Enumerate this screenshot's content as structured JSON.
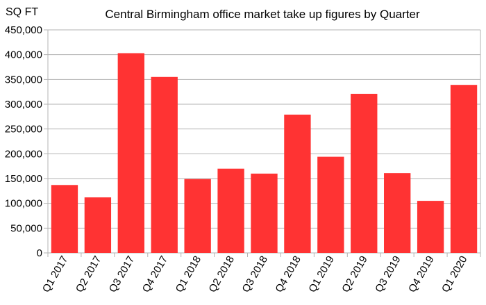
{
  "chart_data": {
    "type": "bar",
    "title": "Central Birmingham office market take up figures by Quarter",
    "ylabel": "SQ FT",
    "xlabel": "",
    "categories": [
      "Q1 2017",
      "Q2 2017",
      "Q3 2017",
      "Q4 2017",
      "Q1 2018",
      "Q2 2018",
      "Q3 2018",
      "Q4 2018",
      "Q1 2019",
      "Q2 2019",
      "Q3 2019",
      "Q4 2019",
      "Q1 2020"
    ],
    "values": [
      137000,
      112000,
      403000,
      355000,
      149000,
      170000,
      160000,
      279000,
      194000,
      321000,
      161000,
      105000,
      339000
    ],
    "ylim": [
      0,
      450000
    ],
    "yticks": [
      0,
      50000,
      100000,
      150000,
      200000,
      250000,
      300000,
      350000,
      400000,
      450000
    ],
    "ytick_labels": [
      "0",
      "50,000",
      "100,000",
      "150,000",
      "200,000",
      "250,000",
      "300,000",
      "350,000",
      "400,000",
      "450,000"
    ],
    "grid": true,
    "legend": "none",
    "bar_color": "#ff3333",
    "grid_color": "#b3b3b3"
  }
}
